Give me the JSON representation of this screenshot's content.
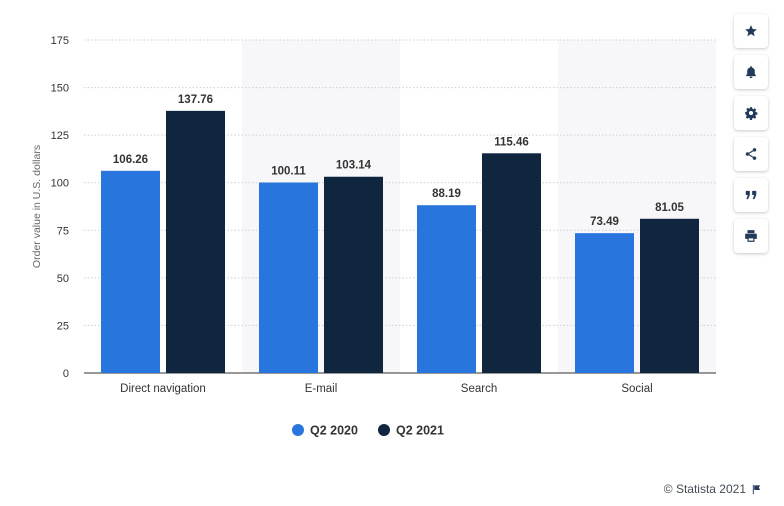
{
  "chart_data": {
    "type": "bar",
    "title": "",
    "xlabel": "",
    "ylabel": "Order value in U.S. dollars",
    "ylim": [
      0,
      175
    ],
    "yticks": [
      0,
      25,
      50,
      75,
      100,
      125,
      150,
      175
    ],
    "grid": true,
    "legend_position": "bottom-center",
    "categories": [
      "Direct navigation",
      "E-mail",
      "Search",
      "Social"
    ],
    "series": [
      {
        "name": "Q2 2020",
        "color": "#2876dd",
        "values": [
          106.26,
          100.11,
          88.19,
          73.49
        ],
        "labels": [
          "106.26",
          "100.11",
          "88.19",
          "73.49"
        ]
      },
      {
        "name": "Q2 2021",
        "color": "#10263f",
        "values": [
          137.76,
          103.14,
          115.46,
          81.05
        ],
        "labels": [
          "137.76",
          "103.14",
          "115.46",
          "81.05"
        ]
      }
    ]
  },
  "toolbar": {
    "buttons": [
      {
        "name": "favorite-button",
        "icon": "star-icon"
      },
      {
        "name": "notification-button",
        "icon": "bell-icon"
      },
      {
        "name": "settings-button",
        "icon": "gear-icon"
      },
      {
        "name": "share-button",
        "icon": "share-icon"
      },
      {
        "name": "cite-button",
        "icon": "quote-icon"
      },
      {
        "name": "print-button",
        "icon": "print-icon"
      }
    ]
  },
  "credit": {
    "text": "© Statista 2021",
    "icon": "flag-icon"
  }
}
